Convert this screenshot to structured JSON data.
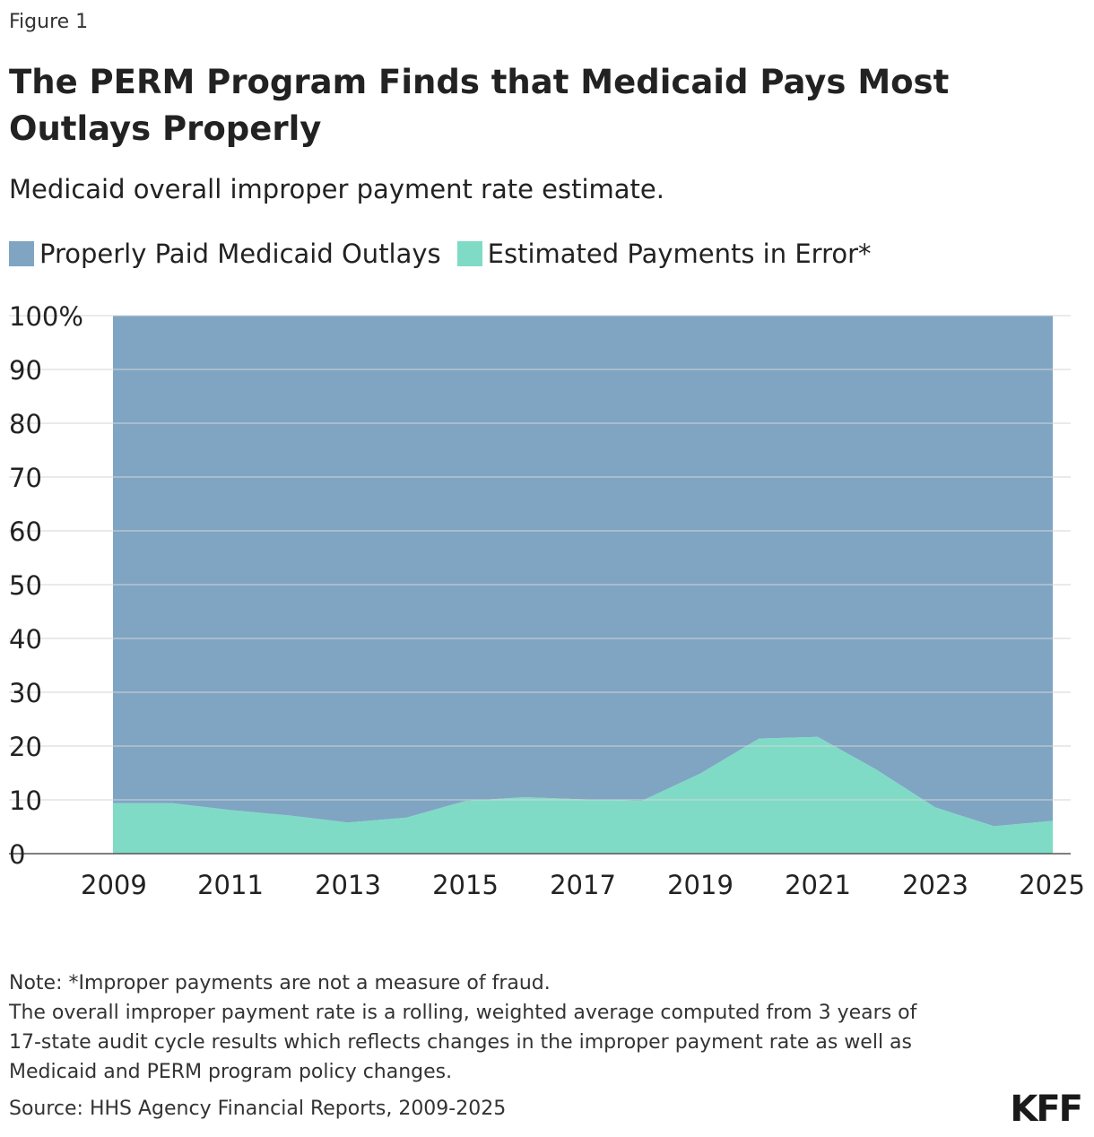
{
  "figure_label": "Figure 1",
  "title": "The PERM Program Finds that Medicaid Pays Most Outlays Properly",
  "subtitle": "Medicaid overall improper payment rate estimate.",
  "legend": [
    {
      "label": "Properly Paid Medicaid Outlays",
      "color": "#7fa5c3"
    },
    {
      "label": "Estimated Payments in Error*",
      "color": "#7fdbc6"
    }
  ],
  "notes": [
    "Note: *Improper payments are not a measure of fraud.",
    "The overall improper payment rate is a rolling, weighted average computed from 3 years of",
    "17-state audit cycle results which reflects changes in the improper payment rate as well as",
    "Medicaid and PERM program policy changes."
  ],
  "source": "Source: HHS Agency Financial Reports, 2009-2025",
  "logo_text": "KFF",
  "chart_data": {
    "type": "area",
    "stacked": true,
    "x": [
      2009,
      2010,
      2011,
      2012,
      2013,
      2014,
      2015,
      2016,
      2017,
      2018,
      2019,
      2020,
      2021,
      2022,
      2023,
      2024,
      2025
    ],
    "series": [
      {
        "name": "Estimated Payments in Error*",
        "color": "#7fdbc6",
        "values": [
          9.4,
          9.4,
          8.1,
          7.1,
          5.8,
          6.7,
          9.8,
          10.5,
          10.1,
          9.8,
          14.9,
          21.4,
          21.7,
          15.6,
          8.6,
          5.1,
          6.1
        ]
      },
      {
        "name": "Properly Paid Medicaid Outlays",
        "color": "#7fa5c3",
        "values": [
          90.6,
          90.6,
          91.9,
          92.9,
          94.2,
          93.3,
          90.2,
          89.5,
          89.9,
          90.2,
          85.1,
          78.6,
          78.3,
          84.4,
          91.4,
          94.9,
          93.9
        ]
      }
    ],
    "ylim": [
      0,
      100
    ],
    "yticks": [
      "0",
      "10",
      "20",
      "30",
      "40",
      "50",
      "60",
      "70",
      "80",
      "90",
      "100%"
    ],
    "xticks": [
      "2009",
      "2011",
      "2013",
      "2015",
      "2017",
      "2019",
      "2021",
      "2023",
      "2025"
    ],
    "grid": true,
    "legend_position": "top-left"
  }
}
